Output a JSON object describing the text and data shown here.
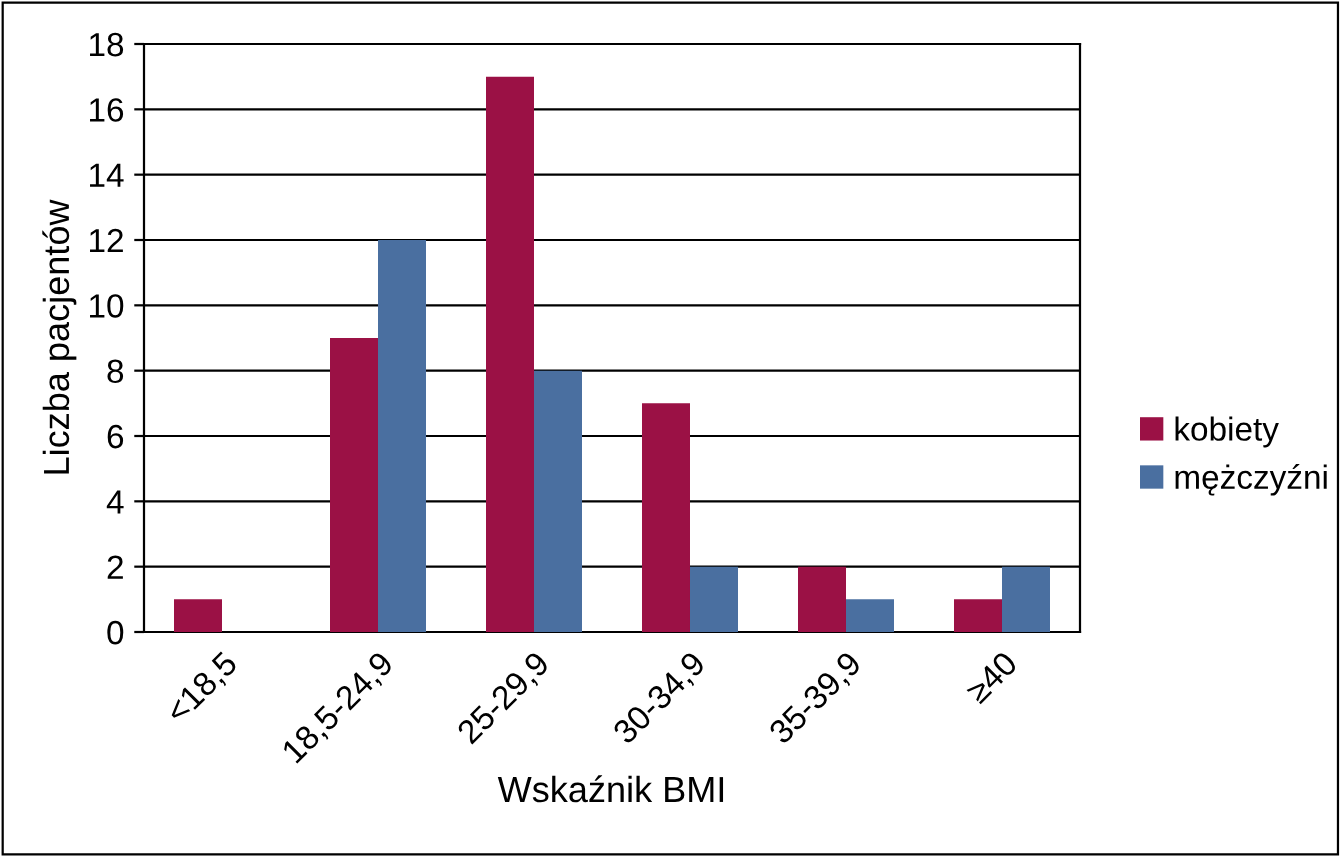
{
  "chart_data": {
    "type": "bar",
    "xlabel": "Wskaźnik BMI",
    "ylabel": "Liczba pacjentów",
    "categories": [
      "<18,5",
      "18,5-24,9",
      "25-29,9",
      "30-34,9",
      "35-39,9",
      "≥40"
    ],
    "series": [
      {
        "name": "kobiety",
        "color": "#9b1145",
        "values": [
          1,
          9,
          17,
          7,
          2,
          1
        ]
      },
      {
        "name": "mężczyźni",
        "color": "#4a6fa0",
        "values": [
          0,
          12,
          8,
          2,
          1,
          2
        ]
      }
    ],
    "ylim": [
      0,
      18
    ],
    "yticks": [
      0,
      2,
      4,
      6,
      8,
      10,
      12,
      14,
      16,
      18
    ],
    "grid": "y",
    "legend": "right"
  }
}
